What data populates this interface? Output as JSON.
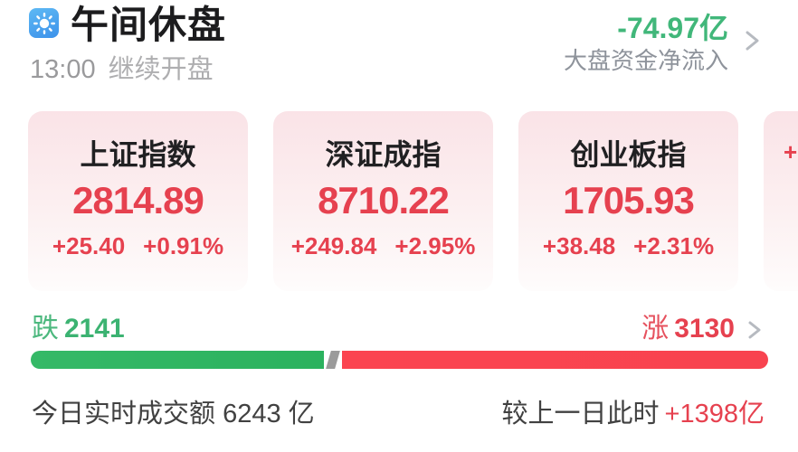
{
  "header": {
    "title": "午间休盘",
    "time": "13:00",
    "time_note": "继续开盘",
    "net_inflow_value": "-74.97亿",
    "net_inflow_label": "大盘资金净流入"
  },
  "indices": [
    {
      "name": "上证指数",
      "value": "2814.89",
      "change": "+25.40",
      "change_pct": "+0.91%"
    },
    {
      "name": "深证成指",
      "value": "8710.22",
      "change": "+249.84",
      "change_pct": "+2.95%"
    },
    {
      "name": "创业板指",
      "value": "1705.93",
      "change": "+38.48",
      "change_pct": "+2.31%"
    },
    {
      "name": "",
      "value": "",
      "change": "+",
      "change_pct": ""
    }
  ],
  "breadth": {
    "down_label": "跌",
    "down_count": "2141",
    "up_label": "涨",
    "up_count": "3130",
    "down_ratio": 0.398
  },
  "turnover": {
    "today_label": "今日实时成交额",
    "today_value": "6243",
    "today_unit": "亿",
    "compare_label": "较上一日此时",
    "compare_value": "+1398亿"
  },
  "colors": {
    "up_red": "#e6414f",
    "down_green": "#3cb372",
    "bar_red": "#f8434f",
    "bar_green": "#2eb360",
    "card_pink_top": "#fae3e7",
    "icon_blue": "#4aa2ee",
    "muted_gray": "#9a9a9c"
  }
}
